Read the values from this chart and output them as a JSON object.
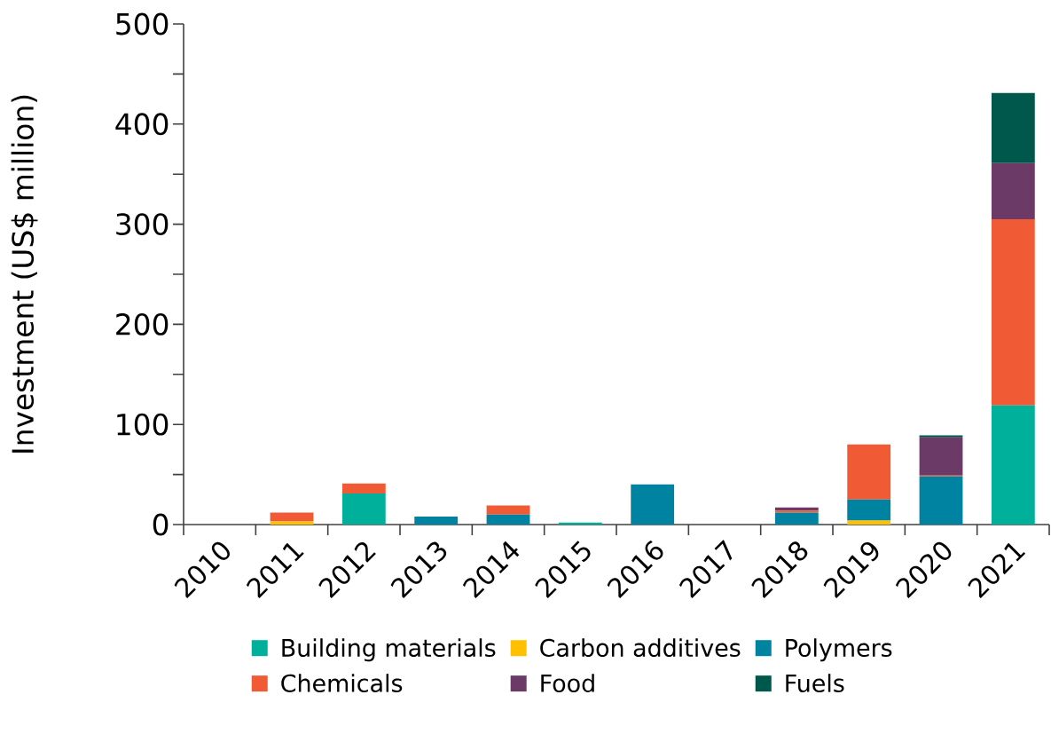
{
  "chart_data": {
    "type": "bar",
    "stacked": true,
    "ylabel": "Investment (US$ million)",
    "categories": [
      "2010",
      "2011",
      "2012",
      "2013",
      "2014",
      "2015",
      "2016",
      "2017",
      "2018",
      "2019",
      "2020",
      "2021"
    ],
    "series": [
      {
        "name": "Building materials",
        "color": "#00b09b",
        "values": [
          0,
          0,
          31,
          0,
          0,
          2,
          0,
          0,
          0,
          0,
          0,
          119
        ]
      },
      {
        "name": "Carbon additives",
        "color": "#ffc000",
        "values": [
          0,
          3,
          0,
          0,
          0,
          0,
          0,
          0,
          0,
          4,
          0,
          0
        ]
      },
      {
        "name": "Polymers",
        "color": "#0083a0",
        "values": [
          0,
          0,
          0,
          8,
          10,
          0,
          40,
          0,
          12,
          21,
          48,
          0
        ]
      },
      {
        "name": "Chemicals",
        "color": "#f05a35",
        "values": [
          0,
          9,
          10,
          0,
          9,
          0,
          0,
          0,
          2,
          55,
          1,
          186
        ]
      },
      {
        "name": "Food",
        "color": "#6b3a66",
        "values": [
          0,
          0,
          0,
          0,
          0,
          0,
          0,
          0,
          3,
          0,
          38,
          56
        ]
      },
      {
        "name": "Fuels",
        "color": "#00574b",
        "values": [
          0,
          0,
          0,
          0,
          0,
          0,
          0,
          0,
          0,
          0,
          2,
          70
        ]
      }
    ],
    "ylim": [
      0,
      500
    ],
    "yticks": [
      0,
      {
        "value": 50,
        "label": null
      },
      100,
      {
        "value": 150,
        "label": null
      },
      200,
      {
        "value": 250,
        "label": null
      },
      300,
      {
        "value": 350,
        "label": null
      },
      400,
      {
        "value": 450,
        "label": null
      },
      500
    ],
    "grid": false,
    "legend": "bottom"
  }
}
